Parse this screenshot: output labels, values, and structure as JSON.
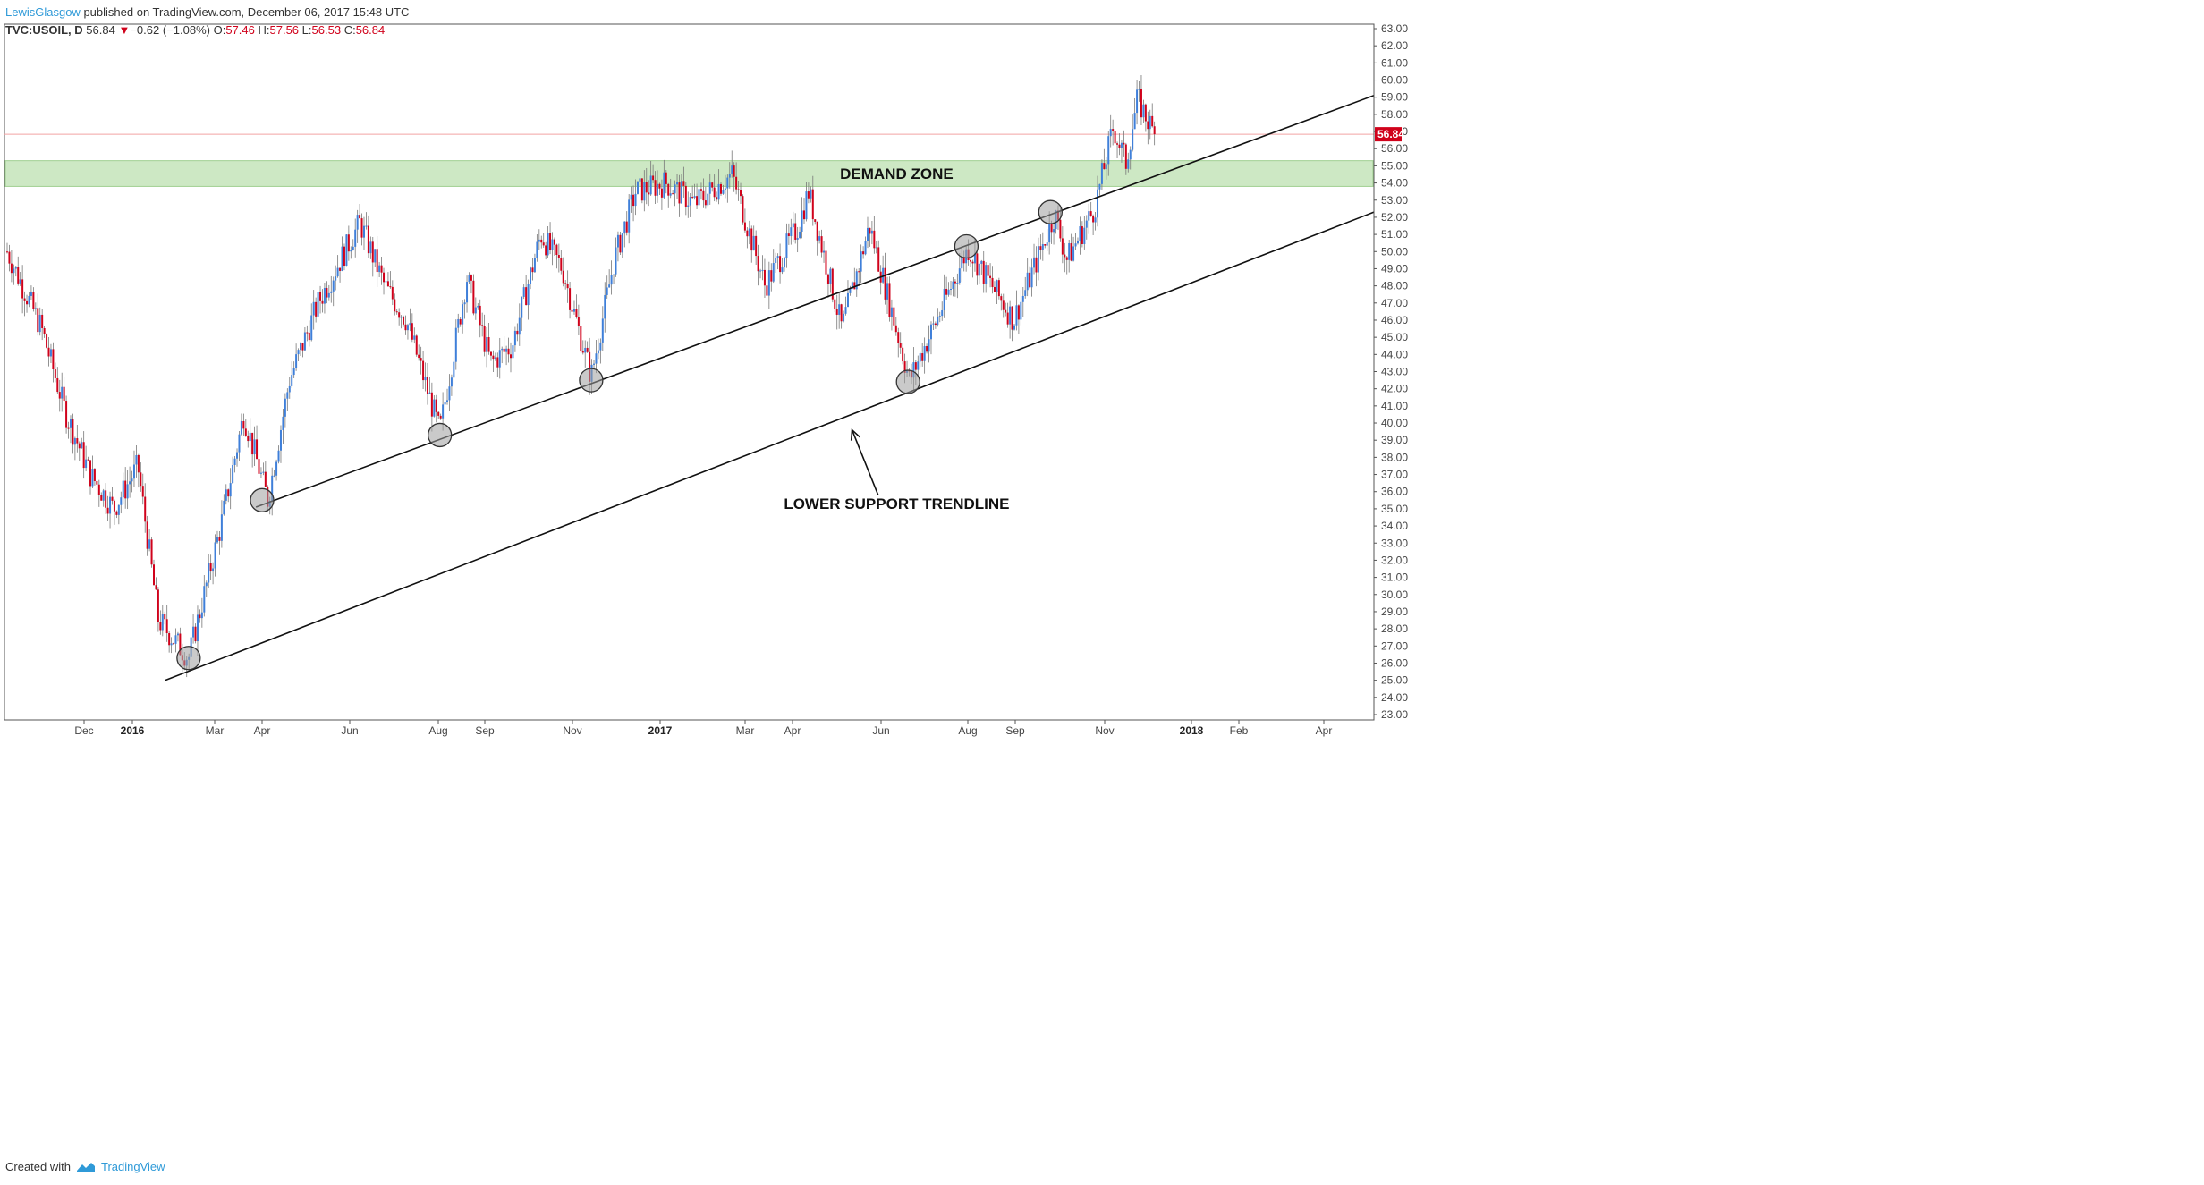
{
  "header": {
    "author": "LewisGlasgow",
    "published": "published on TradingView.com, December 06, 2017 15:48 UTC",
    "symbol": "TVC:USOIL, D",
    "last": "56.84",
    "change": "−0.62 (−1.08%)",
    "o_label": "O:",
    "o_val": "57.46",
    "h_label": "H:",
    "h_val": "57.56",
    "l_label": "L:",
    "l_val": "56.53",
    "c_label": "C:",
    "c_val": "56.84"
  },
  "footer": {
    "created": "Created with",
    "brand": "TradingView"
  },
  "colors": {
    "up": "#3f7fd9",
    "down": "#d0021b",
    "zone": "#cde8c4",
    "price_line": "#f2a3a3",
    "price_tag": "#d0021b",
    "circle": "#9e9e9e"
  },
  "chart_data": {
    "type": "candlestick",
    "symbol": "TVC:USOIL",
    "interval": "D",
    "y_axis": {
      "side": "right",
      "min": 23,
      "max": 63,
      "step": 1
    },
    "current_price": 56.84,
    "x_ticks": [
      {
        "label": "Dec",
        "bold": false,
        "date": "2015-12"
      },
      {
        "label": "2016",
        "bold": true,
        "date": "2016-01"
      },
      {
        "label": "Mar",
        "bold": false,
        "date": "2016-03"
      },
      {
        "label": "Apr",
        "bold": false,
        "date": "2016-04"
      },
      {
        "label": "Jun",
        "bold": false,
        "date": "2016-06"
      },
      {
        "label": "Aug",
        "bold": false,
        "date": "2016-08"
      },
      {
        "label": "Sep",
        "bold": false,
        "date": "2016-09"
      },
      {
        "label": "Nov",
        "bold": false,
        "date": "2016-11"
      },
      {
        "label": "2017",
        "bold": true,
        "date": "2017-01"
      },
      {
        "label": "Mar",
        "bold": false,
        "date": "2017-03"
      },
      {
        "label": "Apr",
        "bold": false,
        "date": "2017-04"
      },
      {
        "label": "Jun",
        "bold": false,
        "date": "2017-06"
      },
      {
        "label": "Aug",
        "bold": false,
        "date": "2017-08"
      },
      {
        "label": "Sep",
        "bold": false,
        "date": "2017-09"
      },
      {
        "label": "Nov",
        "bold": false,
        "date": "2017-11"
      },
      {
        "label": "2018",
        "bold": true,
        "date": "2018-01"
      },
      {
        "label": "Feb",
        "bold": false,
        "date": "2018-02"
      },
      {
        "label": "Apr",
        "bold": false,
        "date": "2018-04"
      }
    ],
    "price_path": [
      {
        "date": "2015-10-15",
        "price": 50.0
      },
      {
        "date": "2015-11-05",
        "price": 45.5
      },
      {
        "date": "2015-11-20",
        "price": 40.5
      },
      {
        "date": "2015-12-05",
        "price": 37.0
      },
      {
        "date": "2015-12-20",
        "price": 35.0
      },
      {
        "date": "2016-01-05",
        "price": 37.5
      },
      {
        "date": "2016-01-20",
        "price": 28.5
      },
      {
        "date": "2016-02-11",
        "price": 26.3
      },
      {
        "date": "2016-03-05",
        "price": 34.0
      },
      {
        "date": "2016-03-20",
        "price": 40.5
      },
      {
        "date": "2016-04-05",
        "price": 35.5
      },
      {
        "date": "2016-04-20",
        "price": 42.5
      },
      {
        "date": "2016-05-10",
        "price": 47.0
      },
      {
        "date": "2016-06-08",
        "price": 51.7
      },
      {
        "date": "2016-06-25",
        "price": 48.0
      },
      {
        "date": "2016-07-10",
        "price": 46.0
      },
      {
        "date": "2016-08-02",
        "price": 39.5
      },
      {
        "date": "2016-08-20",
        "price": 48.5
      },
      {
        "date": "2016-09-05",
        "price": 43.5
      },
      {
        "date": "2016-09-20",
        "price": 44.5
      },
      {
        "date": "2016-10-10",
        "price": 51.0
      },
      {
        "date": "2016-10-25",
        "price": 49.0
      },
      {
        "date": "2016-11-14",
        "price": 42.7
      },
      {
        "date": "2016-11-30",
        "price": 49.5
      },
      {
        "date": "2016-12-15",
        "price": 53.5
      },
      {
        "date": "2017-01-05",
        "price": 54.0
      },
      {
        "date": "2017-01-25",
        "price": 52.8
      },
      {
        "date": "2017-02-20",
        "price": 54.5
      },
      {
        "date": "2017-03-14",
        "price": 48.0
      },
      {
        "date": "2017-04-05",
        "price": 51.5
      },
      {
        "date": "2017-04-12",
        "price": 53.5
      },
      {
        "date": "2017-05-05",
        "price": 45.5
      },
      {
        "date": "2017-05-24",
        "price": 51.5
      },
      {
        "date": "2017-06-21",
        "price": 42.5
      },
      {
        "date": "2017-07-10",
        "price": 46.0
      },
      {
        "date": "2017-08-01",
        "price": 50.2
      },
      {
        "date": "2017-08-31",
        "price": 46.0
      },
      {
        "date": "2017-09-28",
        "price": 52.2
      },
      {
        "date": "2017-10-06",
        "price": 49.5
      },
      {
        "date": "2017-10-25",
        "price": 52.5
      },
      {
        "date": "2017-11-07",
        "price": 57.2
      },
      {
        "date": "2017-11-16",
        "price": 55.2
      },
      {
        "date": "2017-11-24",
        "price": 58.9
      },
      {
        "date": "2017-12-06",
        "price": 56.84
      }
    ],
    "zones": [
      {
        "label": "DEMAND ZONE",
        "from": 53.8,
        "to": 55.3
      }
    ],
    "trendlines": [
      {
        "label": "LOWER SUPPORT TRENDLINE",
        "from": {
          "date": "2016-01-25",
          "price": 25.0
        },
        "to": {
          "date": "2018-05-01",
          "price": 52.3
        }
      },
      {
        "label": "",
        "from": {
          "date": "2016-03-28",
          "price": 35.1
        },
        "to": {
          "date": "2018-05-01",
          "price": 59.1
        }
      }
    ],
    "touch_points": [
      {
        "date": "2016-02-11",
        "price": 26.3
      },
      {
        "date": "2016-04-01",
        "price": 35.5
      },
      {
        "date": "2016-08-02",
        "price": 39.3
      },
      {
        "date": "2016-11-14",
        "price": 42.5
      },
      {
        "date": "2017-06-20",
        "price": 42.4
      },
      {
        "date": "2017-07-31",
        "price": 50.3
      },
      {
        "date": "2017-09-25",
        "price": 52.3
      }
    ],
    "annotations": [
      {
        "text": "DEMAND ZONE",
        "date": "2017-05-15",
        "price": 54.55
      },
      {
        "text": "LOWER SUPPORT TRENDLINE",
        "date": "2017-05-15",
        "price": 35.3
      }
    ],
    "arrow": {
      "from": {
        "date": "2017-05-30",
        "price": 35.8
      },
      "to": {
        "date": "2017-05-12",
        "price": 39.6
      }
    }
  }
}
